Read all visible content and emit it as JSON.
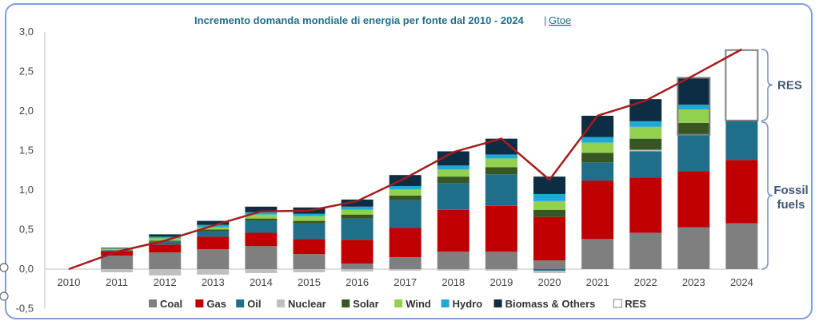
{
  "chart_data": {
    "type": "bar",
    "title": "Incremento domanda mondiale di energia per fonte dal 2010 - 2024",
    "unit": "Gtoe",
    "title_separator": "|",
    "categories": [
      "2010",
      "2011",
      "2012",
      "2013",
      "2014",
      "2015",
      "2016",
      "2017",
      "2018",
      "2019",
      "2020",
      "2021",
      "2022",
      "2023",
      "2024"
    ],
    "ylim": [
      -0.5,
      3.0
    ],
    "yticks": [
      "3,0",
      "2,5",
      "2,0",
      "1,5",
      "1,0",
      "0,5",
      "0,0",
      "-0,5"
    ],
    "ytick_values": [
      3.0,
      2.5,
      2.0,
      1.5,
      1.0,
      0.5,
      0.0,
      -0.5
    ],
    "stacked": true,
    "series": [
      {
        "name": "Coal",
        "color": "#7f7f7f",
        "values": [
          0,
          0.17,
          0.21,
          0.25,
          0.29,
          0.19,
          0.07,
          0.15,
          0.22,
          0.22,
          0.11,
          0.38,
          0.46,
          0.53,
          0.58
        ]
      },
      {
        "name": "Gas",
        "color": "#c00000",
        "values": [
          0,
          0.06,
          0.1,
          0.16,
          0.17,
          0.19,
          0.3,
          0.37,
          0.53,
          0.58,
          0.55,
          0.74,
          0.7,
          0.71,
          0.8
        ]
      },
      {
        "name": "Oil",
        "color": "#1f6f8b",
        "values": [
          0,
          0.01,
          0.04,
          0.07,
          0.15,
          0.2,
          0.27,
          0.35,
          0.34,
          0.4,
          -0.02,
          0.23,
          0.33,
          0.46,
          0.5
        ]
      },
      {
        "name": "Nuclear",
        "color": "#bfbfbf",
        "values": [
          0,
          -0.04,
          -0.08,
          -0.07,
          -0.05,
          -0.04,
          -0.03,
          -0.02,
          -0.02,
          -0.02,
          -0.03,
          0,
          0.02,
          0,
          0
        ]
      },
      {
        "name": "Solar",
        "color": "#375623",
        "values": [
          0,
          0,
          0.01,
          0.02,
          0.03,
          0.03,
          0.05,
          0.06,
          0.08,
          0.09,
          0.09,
          0.12,
          0.14,
          0.15,
          0
        ]
      },
      {
        "name": "Wind",
        "color": "#92d050",
        "values": [
          0,
          0.02,
          0.03,
          0.03,
          0.05,
          0.06,
          0.06,
          0.08,
          0.09,
          0.11,
          0.11,
          0.13,
          0.15,
          0.17,
          0
        ]
      },
      {
        "name": "Hydro",
        "color": "#1fa8d8",
        "values": [
          0,
          0,
          0.02,
          0.03,
          0.03,
          0.03,
          0.04,
          0.04,
          0.05,
          0.05,
          0.09,
          0.07,
          0.07,
          0.06,
          0
        ]
      },
      {
        "name": "Biomass & Others",
        "color": "#0d2d44",
        "values": [
          0,
          0.01,
          0.03,
          0.05,
          0.07,
          0.08,
          0.09,
          0.14,
          0.18,
          0.2,
          0.22,
          0.27,
          0.28,
          0.34,
          0
        ]
      },
      {
        "name": "RES",
        "color": "#ffffff",
        "values": [
          0,
          0,
          0,
          0,
          0,
          0,
          0,
          0,
          0,
          0,
          0,
          0,
          0,
          0,
          0.89
        ]
      }
    ],
    "line": {
      "color": "#a61c1c",
      "values": [
        0,
        0.22,
        0.36,
        0.55,
        0.73,
        0.74,
        0.86,
        1.15,
        1.48,
        1.65,
        1.13,
        1.94,
        2.13,
        2.45,
        2.78
      ]
    },
    "res_outline_color": "#7f7f7f",
    "annotations": [
      {
        "label": "RES",
        "range": [
          1.88,
          2.78
        ]
      },
      {
        "label": "Fossil fuels",
        "range": [
          0.0,
          1.86
        ]
      }
    ],
    "grid": false,
    "legend_position": "bottom"
  }
}
